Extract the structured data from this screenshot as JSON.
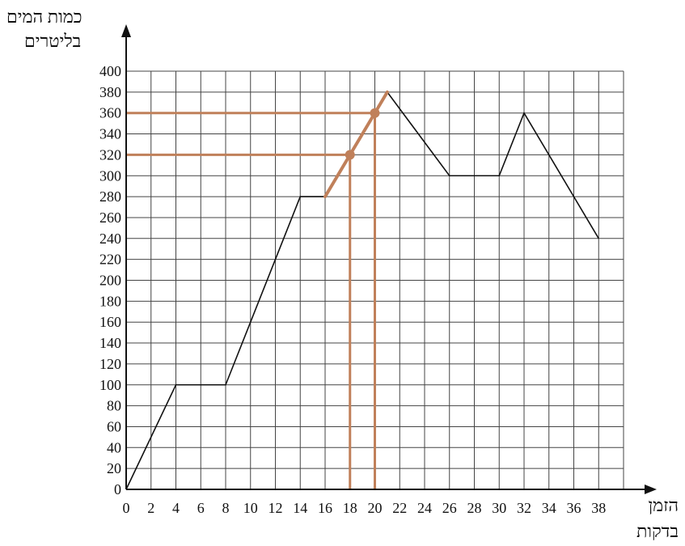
{
  "chart_data": {
    "type": "line",
    "xlabel_lines": [
      "הזמן",
      "בדקות"
    ],
    "ylabel_lines": [
      "כמות המים",
      "בליטרים"
    ],
    "xlim": [
      0,
      40
    ],
    "ylim": [
      0,
      400
    ],
    "x_ticks": [
      0,
      2,
      4,
      6,
      8,
      10,
      12,
      14,
      16,
      18,
      20,
      22,
      24,
      26,
      28,
      30,
      32,
      34,
      36,
      38
    ],
    "y_ticks": [
      0,
      20,
      40,
      60,
      80,
      100,
      120,
      140,
      160,
      180,
      200,
      220,
      240,
      260,
      280,
      300,
      320,
      340,
      360,
      380,
      400
    ],
    "grid": true,
    "series": [
      {
        "color": "#111111",
        "x": [
          0,
          4,
          8,
          14,
          16,
          18,
          20,
          21,
          26,
          30,
          32,
          38
        ],
        "y": [
          0,
          100,
          100,
          280,
          280,
          320,
          360,
          380,
          300,
          300,
          360,
          240
        ]
      }
    ],
    "annotation": {
      "color": "#c0805a",
      "segment": {
        "x": [
          16,
          21
        ],
        "y": [
          280,
          380
        ]
      },
      "points": [
        {
          "x": 18,
          "y": 320
        },
        {
          "x": 20,
          "y": 360
        }
      ]
    }
  }
}
